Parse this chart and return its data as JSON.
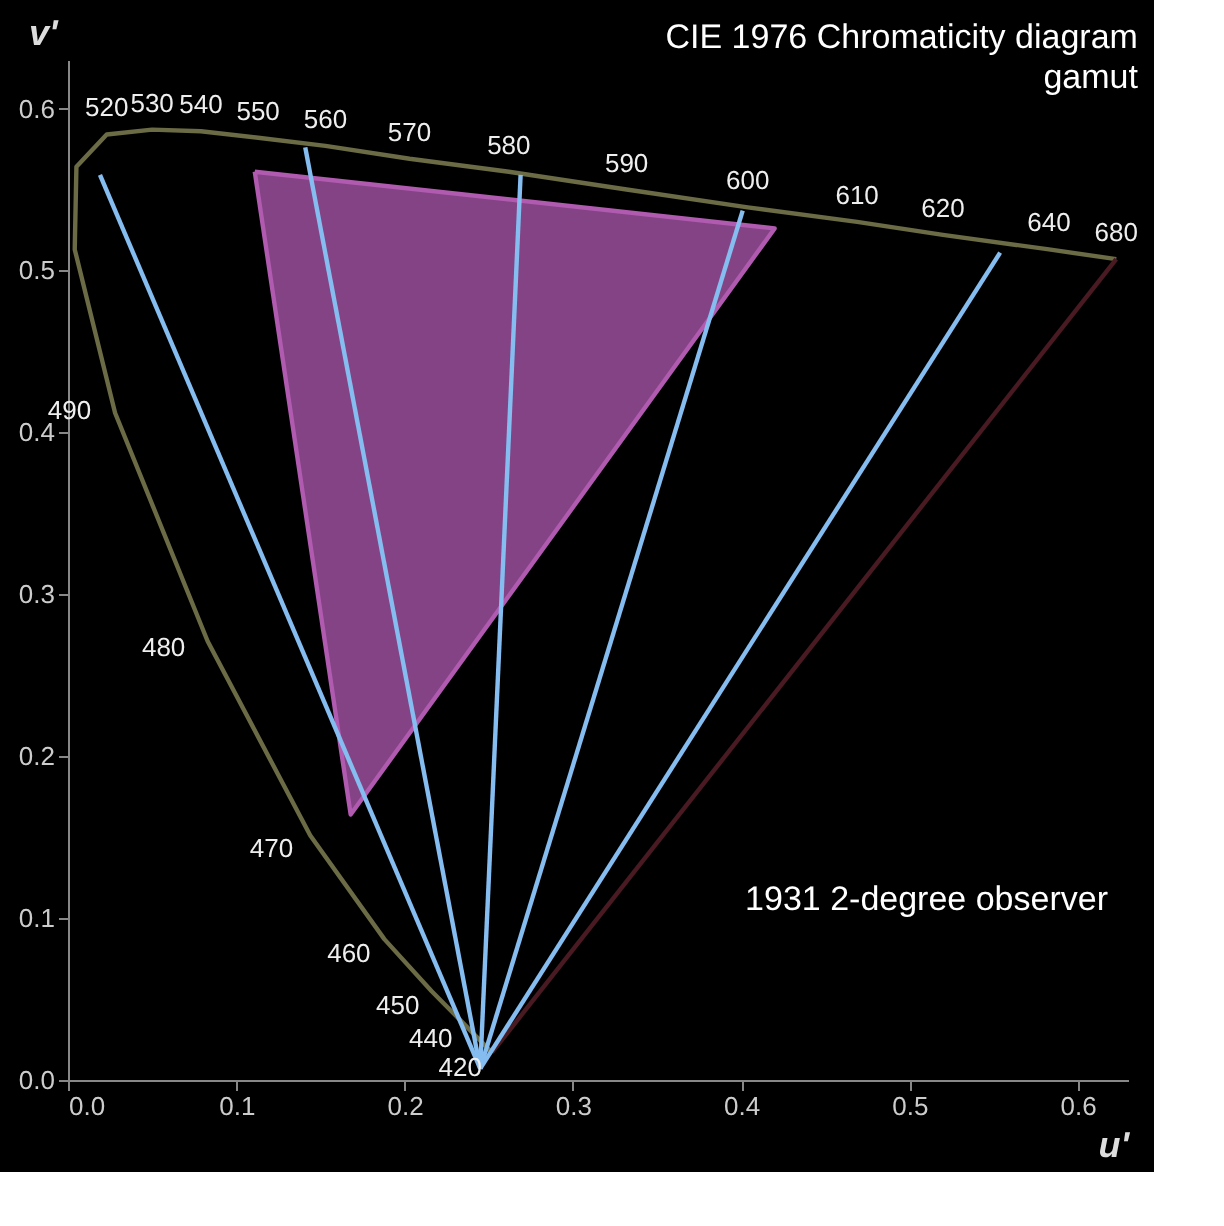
{
  "chart_data": {
    "type": "line",
    "title": "CIE 1976 Chromaticity diagram",
    "subtitle": "gamut",
    "xlabel": "u'",
    "ylabel": "v'",
    "xlim": [
      0,
      0.63
    ],
    "ylim": [
      0,
      0.63
    ],
    "xticks": [
      {
        "value": 0,
        "label": "0.0"
      },
      0.1,
      0.2,
      0.3,
      0.4,
      0.5,
      0.6
    ],
    "yticks": [
      {
        "value": 0,
        "label": "0.0"
      },
      0.1,
      0.2,
      0.3,
      0.4,
      0.5,
      0.6
    ],
    "grid": false,
    "marker": "none",
    "line_style": "solid",
    "series": [
      {
        "color": "#6b6b45",
        "x": [
          0.252,
          0.235,
          0.216,
          0.188,
          0.144,
          0.083,
          0.028,
          0.004,
          0.005,
          0.023,
          0.05,
          0.079,
          0.113,
          0.153,
          0.203,
          0.262,
          0.332,
          0.404,
          0.469,
          0.52,
          0.583,
          0.623
        ],
        "values": [
          0.017,
          0.035,
          0.055,
          0.087,
          0.151,
          0.271,
          0.412,
          0.513,
          0.564,
          0.584,
          0.587,
          0.586,
          0.582,
          0.577,
          0.569,
          0.561,
          0.55,
          0.539,
          0.53,
          0.522,
          0.513,
          0.507
        ]
      },
      {
        "color": "#4a1a22",
        "x": [
          0.623,
          0.252
        ],
        "values": [
          0.507,
          0.017
        ]
      },
      {
        "type": "area",
        "color": "#b05ab0",
        "x": [
          0.111,
          0.42,
          0.168,
          0.111
        ],
        "values": [
          0.561,
          0.526,
          0.164,
          0.561
        ]
      },
      {
        "color": "#85bdf0",
        "x": [
          0.245,
          0.019
        ],
        "values": [
          0.007,
          0.559
        ]
      },
      {
        "color": "#85bdf0",
        "x": [
          0.245,
          0.141
        ],
        "values": [
          0.007,
          0.576
        ]
      },
      {
        "color": "#85bdf0",
        "x": [
          0.245,
          0.269
        ],
        "values": [
          0.007,
          0.559
        ]
      },
      {
        "color": "#85bdf0",
        "x": [
          0.245,
          0.401
        ],
        "values": [
          0.007,
          0.537
        ]
      },
      {
        "color": "#85bdf0",
        "x": [
          0.245,
          0.554
        ],
        "values": [
          0.007,
          0.511
        ]
      }
    ],
    "annotations": [
      {
        "text": "420",
        "x": 0.252,
        "y": 0.017
      },
      {
        "text": "440",
        "x": 0.235,
        "y": 0.035
      },
      {
        "text": "450",
        "x": 0.216,
        "y": 0.055
      },
      {
        "text": "460",
        "x": 0.188,
        "y": 0.087
      },
      {
        "text": "470",
        "x": 0.144,
        "y": 0.151
      },
      {
        "text": "480",
        "x": 0.083,
        "y": 0.271
      },
      {
        "text": "490",
        "x": 0.028,
        "y": 0.412
      },
      {
        "text": "520",
        "x": 0.023,
        "y": 0.584
      },
      {
        "text": "530",
        "x": 0.05,
        "y": 0.587
      },
      {
        "text": "540",
        "x": 0.079,
        "y": 0.586
      },
      {
        "text": "550",
        "x": 0.113,
        "y": 0.582
      },
      {
        "text": "560",
        "x": 0.153,
        "y": 0.577
      },
      {
        "text": "570",
        "x": 0.203,
        "y": 0.569
      },
      {
        "text": "580",
        "x": 0.262,
        "y": 0.561
      },
      {
        "text": "590",
        "x": 0.332,
        "y": 0.55
      },
      {
        "text": "600",
        "x": 0.404,
        "y": 0.539
      },
      {
        "text": "610",
        "x": 0.469,
        "y": 0.53
      },
      {
        "text": "620",
        "x": 0.52,
        "y": 0.522
      },
      {
        "text": "640",
        "x": 0.583,
        "y": 0.513
      },
      {
        "text": "680",
        "x": 0.623,
        "y": 0.507
      },
      "1931 2-degree observer"
    ]
  }
}
